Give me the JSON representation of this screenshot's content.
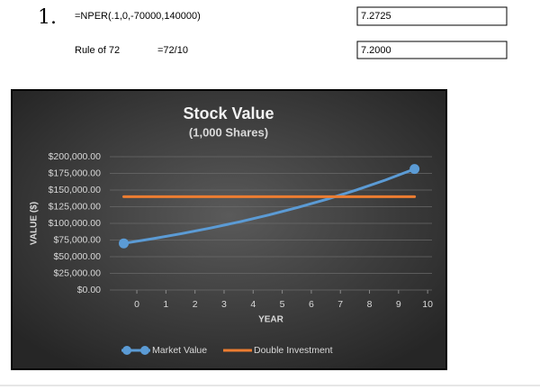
{
  "rows": [
    {
      "marker": "1.",
      "formula": "=NPER(.1,0,-70000,140000)",
      "result": "7.2725"
    },
    {
      "label": "Rule of 72",
      "formula": "=72/10",
      "result": "7.2000"
    }
  ],
  "chart_data": {
    "type": "line",
    "title": "Stock Value",
    "subtitle": "(1,000 Shares)",
    "x_label": "YEAR",
    "y_label": "VALUE ($)",
    "x": [
      -0.45,
      0.55,
      1.55,
      2.55,
      3.55,
      4.55,
      5.55,
      6.55,
      7.55,
      8.55,
      9.55
    ],
    "xlim": [
      -0.93,
      10.15
    ],
    "xticks": [
      0,
      1,
      2,
      3,
      4,
      5,
      6,
      7,
      8,
      9,
      10
    ],
    "ylim": [
      0,
      200000
    ],
    "yticks": [
      {
        "value": 0,
        "label": "$0.00"
      },
      {
        "value": 25000,
        "label": "$25,000.00"
      },
      {
        "value": 50000,
        "label": "$50,000.00"
      },
      {
        "value": 75000,
        "label": "$75,000.00"
      },
      {
        "value": 100000,
        "label": "$100,000.00"
      },
      {
        "value": 125000,
        "label": "$125,000.00"
      },
      {
        "value": 150000,
        "label": "$150,000.00"
      },
      {
        "value": 175000,
        "label": "$175,000.00"
      },
      {
        "value": 200000,
        "label": "$200,000.00"
      }
    ],
    "grid": true,
    "legend": "bottom",
    "series": [
      {
        "name": "Market Value",
        "color": "#5b9bd5",
        "markers": "ends",
        "values": [
          70000,
          77000,
          84700,
          93170,
          102487,
          112736,
          124009,
          136410,
          150051,
          165056,
          181562
        ]
      },
      {
        "name": "Double Investment",
        "color": "#ed7d31",
        "values": [
          140000,
          140000,
          140000,
          140000,
          140000,
          140000,
          140000,
          140000,
          140000,
          140000,
          140000
        ]
      }
    ]
  }
}
